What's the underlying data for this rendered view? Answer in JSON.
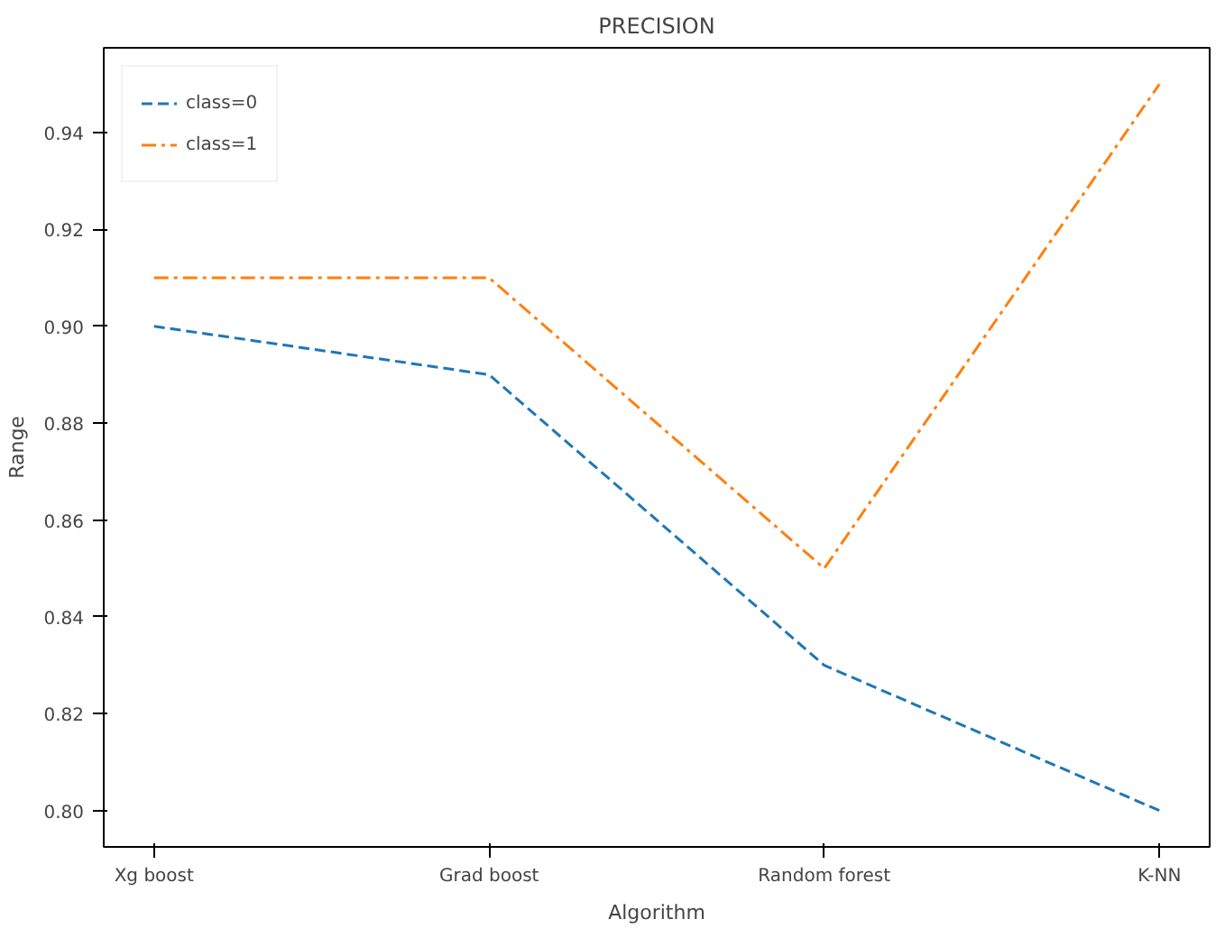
{
  "chart_data": {
    "type": "line",
    "title": "PRECISION",
    "xlabel": "Algorithm",
    "ylabel": "Range",
    "categories": [
      "Xg boost",
      "Grad boost",
      "Random forest",
      "K-NN"
    ],
    "series": [
      {
        "name": "class=0",
        "color": "#1f77b4",
        "line_style": "dashed",
        "values": [
          0.9,
          0.89,
          0.83,
          0.8
        ]
      },
      {
        "name": "class=1",
        "color": "#ff7f0e",
        "line_style": "dashdot",
        "values": [
          0.91,
          0.91,
          0.85,
          0.95
        ]
      }
    ],
    "ylim": [
      0.7925,
      0.9575
    ],
    "yticks": [
      {
        "value": 0.8,
        "label": "0.80"
      },
      0.82,
      0.84,
      0.86,
      0.88,
      {
        "value": 0.9,
        "label": "0.90"
      },
      0.92,
      0.94
    ],
    "grid": false,
    "legend": "top left",
    "marker": "none"
  }
}
